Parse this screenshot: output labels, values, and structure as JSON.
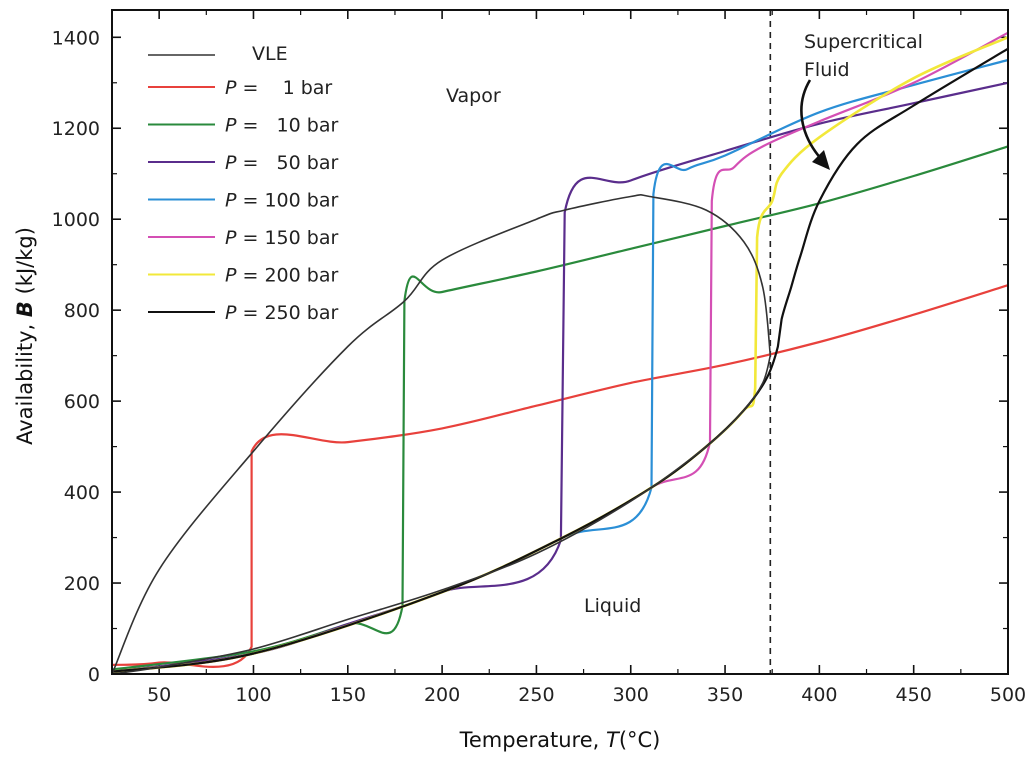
{
  "chart_data": {
    "type": "line",
    "xlabel_prefix": "Temperature, ",
    "xlabel_var": "T",
    "xlabel_suffix": "(°C)",
    "ylabel_prefix": "Availability, ",
    "ylabel_var": "B",
    "ylabel_suffix": " (kJ/kg)",
    "xlim": [
      25,
      500
    ],
    "ylim": [
      0,
      1460
    ],
    "xticks": [
      50,
      100,
      150,
      200,
      250,
      300,
      350,
      400,
      450,
      500
    ],
    "yticks": [
      0,
      200,
      400,
      600,
      800,
      1000,
      1200,
      1400
    ],
    "critical_temperature": 374,
    "annotations": {
      "vapor": "Vapor",
      "liquid": "Liquid",
      "supercritical_line1": "Supercritical",
      "supercritical_line2": "Fluid"
    },
    "legend": [
      {
        "p_var": "P",
        "p_text": " =    1 bar",
        "color": "#e8413c"
      },
      {
        "p_var": "P",
        "p_text": " =   10 bar",
        "color": "#2a8a3c"
      },
      {
        "p_var": "P",
        "p_text": " =   50 bar",
        "color": "#5a2d8c"
      },
      {
        "p_var": "P",
        "p_text": " = 100 bar",
        "color": "#2b8fd6"
      },
      {
        "p_var": "P",
        "p_text": " = 150 bar",
        "color": "#d44fb4"
      },
      {
        "p_var": "P",
        "p_text": " = 200 bar",
        "color": "#f2e83a"
      },
      {
        "p_var": "P",
        "p_text": " = 250 bar",
        "color": "#111111"
      }
    ],
    "vle_label": "VLE",
    "vle_color": "#333333",
    "vle": {
      "liquid_branch": [
        [
          25,
          0
        ],
        [
          50,
          15
        ],
        [
          100,
          55
        ],
        [
          150,
          120
        ],
        [
          200,
          185
        ],
        [
          250,
          265
        ],
        [
          300,
          380
        ],
        [
          340,
          500
        ],
        [
          360,
          580
        ],
        [
          370,
          640
        ],
        [
          374,
          700
        ]
      ],
      "vapor_branch": [
        [
          374,
          700
        ],
        [
          370,
          850
        ],
        [
          360,
          950
        ],
        [
          340,
          1020
        ],
        [
          310,
          1050
        ],
        [
          300,
          1050
        ],
        [
          265,
          1020
        ],
        [
          250,
          1000
        ],
        [
          200,
          910
        ],
        [
          180,
          820
        ],
        [
          150,
          720
        ],
        [
          100,
          490
        ],
        [
          50,
          230
        ],
        [
          25,
          0
        ]
      ]
    },
    "series": [
      {
        "name": "P = 1 bar",
        "color": "#e8413c",
        "points": [
          [
            25,
            20
          ],
          [
            50,
            25
          ],
          [
            99,
            60
          ],
          [
            99,
            490
          ],
          [
            150,
            510
          ],
          [
            200,
            540
          ],
          [
            250,
            590
          ],
          [
            300,
            640
          ],
          [
            350,
            680
          ],
          [
            400,
            730
          ],
          [
            450,
            790
          ],
          [
            500,
            855
          ]
        ]
      },
      {
        "name": "P = 10 bar",
        "color": "#2a8a3c",
        "points": [
          [
            25,
            10
          ],
          [
            100,
            50
          ],
          [
            150,
            110
          ],
          [
            179,
            150
          ],
          [
            180,
            820
          ],
          [
            200,
            840
          ],
          [
            250,
            885
          ],
          [
            300,
            935
          ],
          [
            350,
            985
          ],
          [
            400,
            1035
          ],
          [
            450,
            1095
          ],
          [
            500,
            1160
          ]
        ]
      },
      {
        "name": "P = 50 bar",
        "color": "#5a2d8c",
        "points": [
          [
            25,
            5
          ],
          [
            100,
            45
          ],
          [
            150,
            110
          ],
          [
            200,
            180
          ],
          [
            263,
            295
          ],
          [
            265,
            1015
          ],
          [
            300,
            1085
          ],
          [
            350,
            1150
          ],
          [
            400,
            1210
          ],
          [
            450,
            1255
          ],
          [
            500,
            1300
          ]
        ]
      },
      {
        "name": "P = 100 bar",
        "color": "#2b8fd6",
        "points": [
          [
            25,
            5
          ],
          [
            100,
            45
          ],
          [
            200,
            180
          ],
          [
            264,
            300
          ],
          [
            311,
            410
          ],
          [
            312,
            1055
          ],
          [
            330,
            1110
          ],
          [
            350,
            1140
          ],
          [
            400,
            1235
          ],
          [
            450,
            1295
          ],
          [
            500,
            1350
          ]
        ]
      },
      {
        "name": "P = 150 bar",
        "color": "#d44fb4",
        "points": [
          [
            25,
            5
          ],
          [
            100,
            45
          ],
          [
            200,
            180
          ],
          [
            264,
            300
          ],
          [
            311,
            410
          ],
          [
            342,
            510
          ],
          [
            343,
            1040
          ],
          [
            355,
            1115
          ],
          [
            370,
            1160
          ],
          [
            400,
            1215
          ],
          [
            450,
            1300
          ],
          [
            500,
            1410
          ]
        ]
      },
      {
        "name": "P = 200 bar",
        "color": "#f2e83a",
        "points": [
          [
            25,
            5
          ],
          [
            100,
            45
          ],
          [
            200,
            180
          ],
          [
            264,
            300
          ],
          [
            311,
            410
          ],
          [
            340,
            500
          ],
          [
            360,
            580
          ],
          [
            366,
            630
          ],
          [
            367,
            960
          ],
          [
            375,
            1040
          ],
          [
            380,
            1100
          ],
          [
            400,
            1180
          ],
          [
            450,
            1310
          ],
          [
            500,
            1400
          ]
        ]
      },
      {
        "name": "P = 250 bar",
        "color": "#111111",
        "points": [
          [
            25,
            5
          ],
          [
            100,
            45
          ],
          [
            200,
            180
          ],
          [
            264,
            300
          ],
          [
            311,
            410
          ],
          [
            340,
            500
          ],
          [
            360,
            580
          ],
          [
            372,
            650
          ],
          [
            378,
            720
          ],
          [
            380,
            780
          ],
          [
            385,
            850
          ],
          [
            390,
            920
          ],
          [
            400,
            1040
          ],
          [
            420,
            1165
          ],
          [
            450,
            1250
          ],
          [
            500,
            1375
          ]
        ]
      }
    ]
  }
}
